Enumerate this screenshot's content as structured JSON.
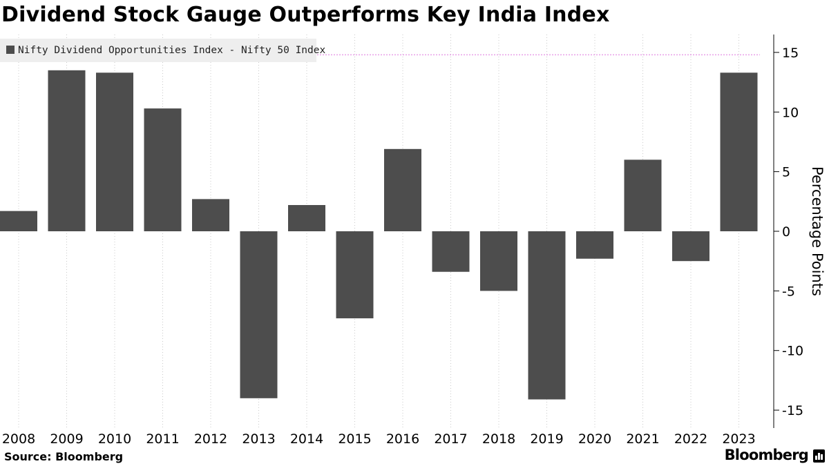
{
  "title": "Dividend Stock Gauge Outperforms Key India Index",
  "source": "Source: Bloomberg",
  "brand": "Bloomberg",
  "chart_data": {
    "type": "bar",
    "title": "Dividend Stock Gauge Outperforms Key India Index",
    "categories": [
      "2008",
      "2009",
      "2010",
      "2011",
      "2012",
      "2013",
      "2014",
      "2015",
      "2016",
      "2017",
      "2018",
      "2019",
      "2020",
      "2021",
      "2022",
      "2023"
    ],
    "series": [
      {
        "name": "Nifty Dividend Opportunities Index - Nifty 50 Index",
        "values": [
          1.7,
          13.5,
          13.3,
          10.3,
          2.7,
          -14.0,
          2.2,
          -7.3,
          6.9,
          -3.4,
          -5.0,
          -14.1,
          -2.3,
          6.0,
          -2.5,
          13.3
        ],
        "color": "#4d4d4d"
      }
    ],
    "xlabel": "",
    "ylabel": "Percentage Points",
    "ylim": [
      -16.5,
      16.5
    ],
    "yticks": [
      15,
      10,
      5,
      0,
      -5,
      -10,
      -15
    ],
    "ytick_labels": [
      "15",
      "10",
      "5",
      "0",
      "-5",
      "-10",
      "-15"
    ],
    "y_axis_side": "right",
    "grid": "vertical dotted gridlines",
    "legend_position": "top-left",
    "reference_line_value": 14.8,
    "reference_line_color": "#e8a0e8"
  }
}
